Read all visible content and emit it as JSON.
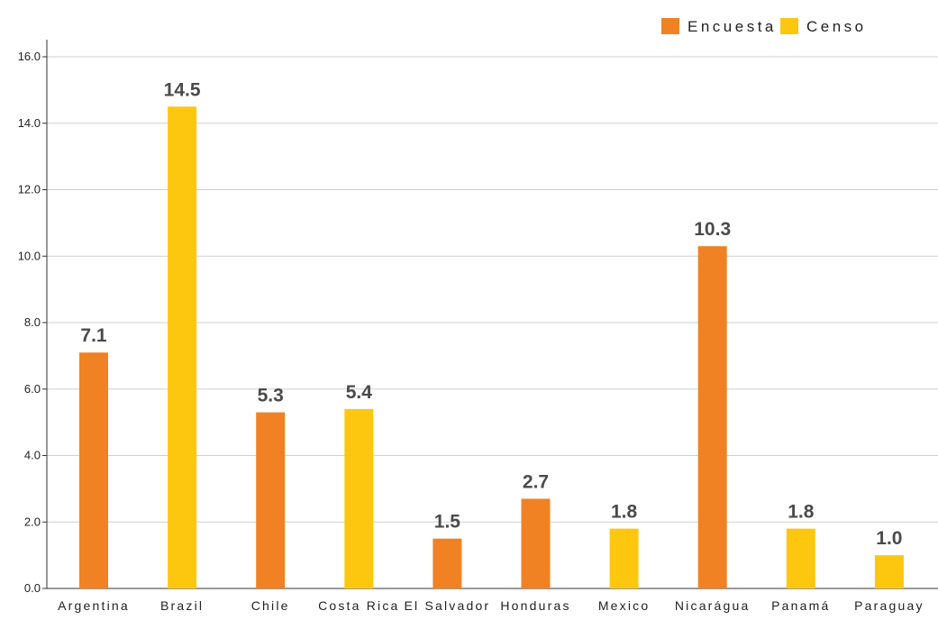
{
  "chart_data": {
    "type": "bar",
    "categories": [
      "Argentina",
      "Brazil",
      "Chile",
      "Costa Rica",
      "El Salvador",
      "Honduras",
      "Mexico",
      "Nicarágua",
      "Panamá",
      "Paraguay"
    ],
    "values": [
      7.1,
      14.5,
      5.3,
      5.4,
      1.5,
      2.7,
      1.8,
      10.3,
      1.8,
      1.0
    ],
    "value_labels": [
      "7.1",
      "14.5",
      "5.3",
      "5.4",
      "1.5",
      "2.7",
      "1.8",
      "10.3",
      "1.8",
      "1.0"
    ],
    "bar_series": [
      "Encuesta",
      "Censo",
      "Encuesta",
      "Censo",
      "Encuesta",
      "Encuesta",
      "Censo",
      "Encuesta",
      "Censo",
      "Censo"
    ],
    "series": [
      {
        "name": "Encuesta",
        "color": "#f08223"
      },
      {
        "name": "Censo",
        "color": "#fdc70f"
      }
    ],
    "y_ticks": [
      "0.0",
      "2.0",
      "4.0",
      "6.0",
      "8.0",
      "10.0",
      "12.0",
      "14.0",
      "16.0"
    ],
    "ylim": [
      0,
      16
    ],
    "title": "",
    "xlabel": "",
    "ylabel": "",
    "grid": true,
    "legend_position": "top-right"
  }
}
